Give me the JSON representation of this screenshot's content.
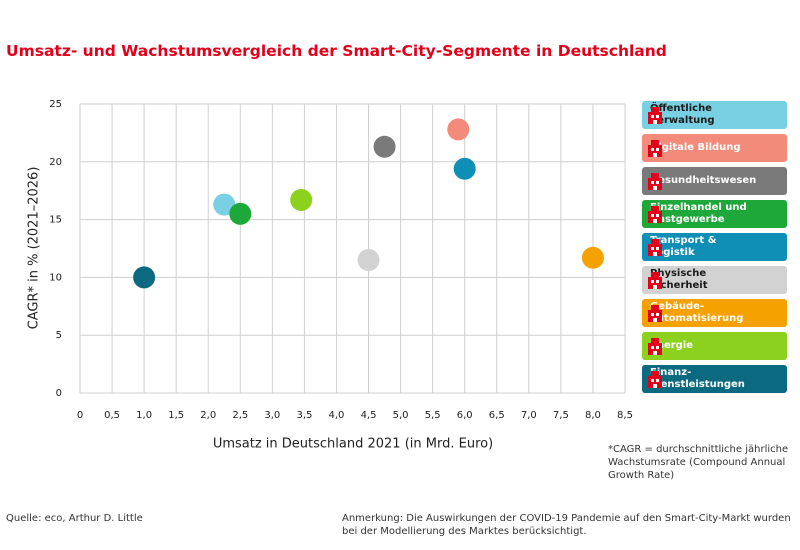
{
  "chart_data": {
    "type": "scatter",
    "title": "Umsatz- und Wachstumsvergleich der Smart-City-Segmente in Deutschland",
    "x_label": "Umsatz in Deutschland 2021 (in Mrd. Euro)",
    "y_label": "CAGR* in % (2021–2026)",
    "footnote": "*CAGR = durchschnittliche jährliche Wachstumsrate (Compound Annual Growth Rate)",
    "source": "Quelle: eco, Arthur D. Little",
    "annotation": "Anmerkung: Die Auswirkungen der COVID-19 Pandemie auf den Smart-City-Markt wurden bei der Modellierung des Marktes berücksichtigt.",
    "xlim": [
      0,
      8.5
    ],
    "ylim": [
      0,
      25
    ],
    "xticks": [
      0,
      {
        "value": 0.5,
        "label": "0,5"
      },
      {
        "value": 1,
        "label": "1,0"
      },
      {
        "value": 1.5,
        "label": "1,5"
      },
      {
        "value": 2,
        "label": "2,0"
      },
      {
        "value": 2.5,
        "label": "2,5"
      },
      {
        "value": 3,
        "label": "3,0"
      },
      {
        "value": 3.5,
        "label": "3,5"
      },
      {
        "value": 4,
        "label": "4,0"
      },
      {
        "value": 4.5,
        "label": "4,5"
      },
      {
        "value": 5,
        "label": "5,0"
      },
      {
        "value": 5.5,
        "label": "5,5"
      },
      {
        "value": 6,
        "label": "6,0"
      },
      {
        "value": 6.5,
        "label": "6,5"
      },
      {
        "value": 7,
        "label": "7,0"
      },
      {
        "value": 7.5,
        "label": "7,5"
      },
      {
        "value": 8,
        "label": "8,0"
      },
      {
        "value": 8.5,
        "label": "8,5"
      }
    ],
    "yticks": [
      0,
      5,
      10,
      15,
      20,
      25
    ],
    "grid": true,
    "series": [
      {
        "name": "Öffentliche Verwaltung",
        "color": "#78d0e2",
        "x": [
          2.25
        ],
        "values": [
          16.3
        ]
      },
      {
        "name": "Digitale Bildung",
        "color": "#f28b7a",
        "x": [
          5.9
        ],
        "values": [
          22.8
        ]
      },
      {
        "name": "Gesundheitswesen",
        "color": "#7a7a7a",
        "x": [
          4.75
        ],
        "values": [
          21.3
        ]
      },
      {
        "name": "Einzelhandel und Gastgewerbe",
        "color": "#1fa83a",
        "x": [
          2.5
        ],
        "values": [
          15.5
        ]
      },
      {
        "name": "Transport & Logistik",
        "color": "#0f8fb5",
        "x": [
          6.0
        ],
        "values": [
          19.4
        ]
      },
      {
        "name": "Physische Sicherheit",
        "color": "#d2d2d2",
        "x": [
          4.5
        ],
        "values": [
          11.5
        ]
      },
      {
        "name": "Gebäude-automatisierung",
        "color": "#f5a100",
        "x": [
          8.0
        ],
        "values": [
          11.7
        ]
      },
      {
        "name": "Energie",
        "color": "#8cd11e",
        "x": [
          3.45
        ],
        "values": [
          16.7
        ]
      },
      {
        "name": "Finanz-dienstleistungen",
        "color": "#0b6a80",
        "x": [
          1.0
        ],
        "values": [
          10.0
        ]
      }
    ]
  }
}
